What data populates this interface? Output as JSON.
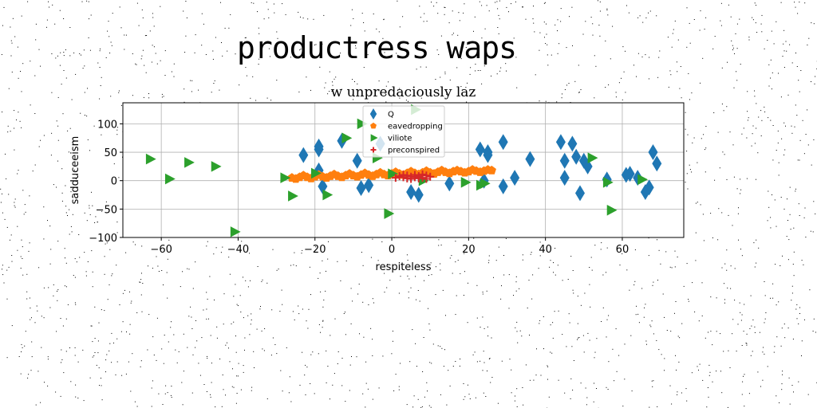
{
  "suptitle": "productress waps",
  "chart_data": {
    "type": "scatter",
    "title": "w unpredaciously laz",
    "xlabel": "respiteless",
    "ylabel": "sadduceeism",
    "xlim": [
      -70,
      76
    ],
    "ylim": [
      -100,
      137
    ],
    "xticks": [
      -60,
      -40,
      -20,
      0,
      20,
      40,
      60
    ],
    "yticks": [
      -100,
      -50,
      0,
      50,
      100
    ],
    "grid": true,
    "legend_position": "top-center",
    "series": [
      {
        "name": "Q",
        "marker": "diamond",
        "color": "#1f77b4",
        "points": [
          [
            -23,
            45
          ],
          [
            -19,
            60
          ],
          [
            -19,
            55
          ],
          [
            -19,
            18
          ],
          [
            -18,
            -10
          ],
          [
            -13,
            70
          ],
          [
            -9,
            35
          ],
          [
            -8,
            -13
          ],
          [
            -6,
            -8
          ],
          [
            -3,
            65
          ],
          [
            5,
            -20
          ],
          [
            7,
            -25
          ],
          [
            15,
            -5
          ],
          [
            23,
            55
          ],
          [
            24,
            0
          ],
          [
            25,
            45
          ],
          [
            25,
            50
          ],
          [
            29,
            -10
          ],
          [
            29,
            68
          ],
          [
            32,
            5
          ],
          [
            36,
            38
          ],
          [
            44,
            68
          ],
          [
            45,
            35
          ],
          [
            45,
            5
          ],
          [
            47,
            65
          ],
          [
            48,
            42
          ],
          [
            49,
            -22
          ],
          [
            50,
            35
          ],
          [
            51,
            25
          ],
          [
            56,
            2
          ],
          [
            61,
            10
          ],
          [
            62,
            12
          ],
          [
            64,
            5
          ],
          [
            66,
            -20
          ],
          [
            67,
            -12
          ],
          [
            68,
            50
          ],
          [
            69,
            30
          ]
        ]
      },
      {
        "name": "eavedropping",
        "marker": "pentagon",
        "color": "#ff7f0e",
        "points": [
          [
            -26,
            5
          ],
          [
            -24,
            6
          ],
          [
            -22,
            6
          ],
          [
            -20,
            7
          ],
          [
            -18,
            7
          ],
          [
            -16,
            8
          ],
          [
            -14,
            8
          ],
          [
            -12,
            9
          ],
          [
            -10,
            9
          ],
          [
            -8,
            10
          ],
          [
            -6,
            10
          ],
          [
            -4,
            11
          ],
          [
            -2,
            11
          ],
          [
            0,
            12
          ],
          [
            2,
            12
          ],
          [
            4,
            13
          ],
          [
            6,
            13
          ],
          [
            8,
            14
          ],
          [
            10,
            14
          ],
          [
            12,
            15
          ],
          [
            14,
            15
          ],
          [
            16,
            16
          ],
          [
            18,
            16
          ],
          [
            20,
            16
          ],
          [
            22,
            17
          ],
          [
            24,
            17
          ],
          [
            26,
            18
          ],
          [
            -25,
            3
          ],
          [
            -21,
            4
          ],
          [
            -17,
            5
          ],
          [
            -13,
            6
          ],
          [
            -9,
            7
          ],
          [
            -5,
            8
          ],
          [
            -1,
            9
          ],
          [
            3,
            10
          ],
          [
            7,
            11
          ],
          [
            11,
            12
          ],
          [
            15,
            13
          ],
          [
            19,
            14
          ],
          [
            23,
            15
          ],
          [
            -23,
            9
          ],
          [
            -19,
            10
          ],
          [
            -15,
            11
          ],
          [
            -11,
            12
          ],
          [
            -7,
            13
          ],
          [
            -3,
            14
          ],
          [
            1,
            15
          ],
          [
            5,
            16
          ],
          [
            9,
            17
          ],
          [
            13,
            18
          ],
          [
            17,
            18
          ],
          [
            21,
            19
          ],
          [
            25,
            19
          ]
        ]
      },
      {
        "name": "viliote",
        "marker": "triangle-right",
        "color": "#2ca02c",
        "points": [
          [
            -63,
            38
          ],
          [
            -58,
            3
          ],
          [
            -53,
            32
          ],
          [
            -46,
            25
          ],
          [
            -41,
            -90
          ],
          [
            -28,
            5
          ],
          [
            -26,
            -27
          ],
          [
            -20,
            13
          ],
          [
            -17,
            -25
          ],
          [
            -12,
            75
          ],
          [
            -8,
            100
          ],
          [
            -4,
            40
          ],
          [
            -1,
            -58
          ],
          [
            0,
            12
          ],
          [
            6,
            125
          ],
          [
            8,
            0
          ],
          [
            19,
            -3
          ],
          [
            23,
            -8
          ],
          [
            24,
            -5
          ],
          [
            52,
            40
          ],
          [
            56,
            -3
          ],
          [
            57,
            -52
          ],
          [
            65,
            2
          ]
        ]
      },
      {
        "name": "preconspired",
        "marker": "plus",
        "color": "#d62728",
        "points": [
          [
            1,
            5
          ],
          [
            2,
            8
          ],
          [
            3,
            6
          ],
          [
            4,
            9
          ],
          [
            5,
            7
          ],
          [
            5,
            3
          ],
          [
            6,
            10
          ],
          [
            6,
            6
          ],
          [
            7,
            4
          ],
          [
            7,
            8
          ],
          [
            8,
            11
          ],
          [
            8,
            5
          ],
          [
            9,
            9
          ],
          [
            9,
            3
          ],
          [
            10,
            7
          ],
          [
            4,
            4
          ],
          [
            3,
            10
          ]
        ]
      }
    ]
  }
}
